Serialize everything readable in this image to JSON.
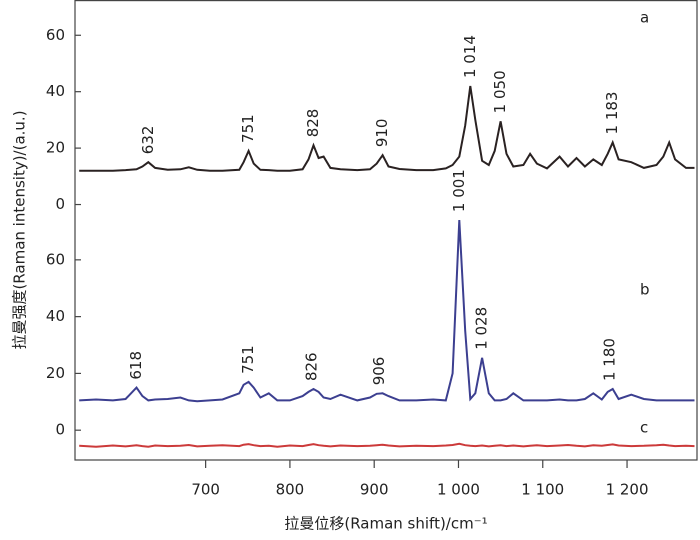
{
  "chart_data": [
    {
      "type": "line",
      "y_label": "拉曼强度(Raman intensity)/(a.u.)",
      "xlim": [
        545,
        1283
      ],
      "ylim": [
        -3,
        72.5
      ],
      "yticks": [
        0,
        20,
        40,
        60
      ],
      "x": [
        550,
        570,
        590,
        605,
        618,
        625,
        632,
        640,
        655,
        670,
        680,
        690,
        705,
        720,
        740,
        745,
        751,
        757,
        765,
        775,
        785,
        800,
        815,
        822,
        828,
        834,
        840,
        848,
        860,
        880,
        895,
        903,
        910,
        917,
        930,
        950,
        970,
        985,
        993,
        1001,
        1008,
        1014,
        1020,
        1028,
        1036,
        1043,
        1050,
        1057,
        1065,
        1077,
        1085,
        1093,
        1105,
        1120,
        1130,
        1140,
        1150,
        1160,
        1170,
        1177,
        1183,
        1190,
        1205,
        1220,
        1235,
        1243,
        1250,
        1257,
        1270,
        1280
      ],
      "series": [
        {
          "name": "a",
          "color": "#2a2222",
          "values": [
            12,
            12,
            12,
            12.2,
            12.5,
            13.5,
            15,
            13,
            12.3,
            12.5,
            13.2,
            12.3,
            12,
            12,
            12.3,
            15,
            19,
            14.5,
            12.3,
            12.2,
            12,
            12,
            12.5,
            16,
            21,
            16.5,
            17,
            13,
            12.5,
            12.2,
            12.5,
            14.5,
            17.5,
            13.5,
            12.6,
            12.2,
            12.2,
            12.8,
            14,
            17,
            28,
            42,
            30,
            15.5,
            14,
            19,
            29.5,
            18,
            13.5,
            14,
            18,
            14.5,
            12.8,
            17,
            13.5,
            16.5,
            13.5,
            16,
            14,
            18,
            22,
            16,
            15,
            13,
            14,
            17,
            22,
            16,
            13,
            13
          ]
        }
      ],
      "annotations": [
        {
          "x": 632,
          "label": "632"
        },
        {
          "x": 751,
          "label": "751"
        },
        {
          "x": 828,
          "label": "828"
        },
        {
          "x": 910,
          "label": "910"
        },
        {
          "x": 1014,
          "label": "1 014"
        },
        {
          "x": 1050,
          "label": "1 050"
        },
        {
          "x": 1183,
          "label": "1 183"
        }
      ]
    },
    {
      "type": "line",
      "x_label": "拉曼位移(Raman shift)/cm⁻¹",
      "xlim": [
        545,
        1283
      ],
      "ylim": [
        -10.5,
        76.5
      ],
      "yticks": [
        0,
        20,
        40,
        60
      ],
      "xticks": [
        700,
        800,
        900,
        {
          "value": 1000,
          "label": "1 000"
        },
        {
          "value": 1100,
          "label": "1 100"
        },
        {
          "value": 1200,
          "label": "1 200"
        }
      ],
      "x": [
        550,
        570,
        590,
        605,
        618,
        625,
        632,
        640,
        655,
        670,
        680,
        690,
        705,
        720,
        740,
        745,
        751,
        757,
        765,
        775,
        785,
        800,
        815,
        822,
        828,
        834,
        840,
        848,
        860,
        880,
        895,
        903,
        910,
        917,
        930,
        950,
        970,
        985,
        993,
        1001,
        1008,
        1014,
        1020,
        1028,
        1036,
        1043,
        1050,
        1057,
        1065,
        1077,
        1085,
        1093,
        1105,
        1120,
        1130,
        1140,
        1150,
        1160,
        1170,
        1177,
        1183,
        1190,
        1205,
        1220,
        1235,
        1243,
        1250,
        1257,
        1270,
        1280
      ],
      "series": [
        {
          "name": "b",
          "color": "#3c3f90",
          "values": [
            10.5,
            10.8,
            10.5,
            11,
            15,
            12,
            10.5,
            10.8,
            11,
            11.5,
            10.5,
            10.2,
            10.5,
            10.8,
            13,
            16,
            17,
            15,
            11.5,
            13,
            10.5,
            10.5,
            12,
            13.5,
            14.5,
            13.5,
            11.5,
            11,
            12.5,
            10.5,
            11.5,
            12.8,
            13,
            12,
            10.5,
            10.5,
            10.8,
            10.5,
            20,
            74,
            35,
            11,
            13,
            25.5,
            13,
            10.5,
            10.5,
            11,
            13,
            10.5,
            10.5,
            10.5,
            10.5,
            10.8,
            10.5,
            10.5,
            11,
            13,
            10.8,
            13.5,
            14.5,
            11,
            12.5,
            11,
            10.5,
            10.5,
            10.5,
            10.5,
            10.5,
            10.5
          ]
        },
        {
          "name": "c",
          "color": "#cc3a3a",
          "values": [
            -5.5,
            -5.8,
            -5.4,
            -5.7,
            -5.3,
            -5.6,
            -5.8,
            -5.4,
            -5.6,
            -5.5,
            -5.2,
            -5.7,
            -5.5,
            -5.3,
            -5.6,
            -5.1,
            -4.9,
            -5.3,
            -5.6,
            -5.5,
            -5.8,
            -5.4,
            -5.6,
            -5.2,
            -4.9,
            -5.3,
            -5.5,
            -5.7,
            -5.4,
            -5.6,
            -5.5,
            -5.3,
            -5.1,
            -5.4,
            -5.7,
            -5.5,
            -5.6,
            -5.4,
            -5.2,
            -4.8,
            -5.3,
            -5.5,
            -5.6,
            -5.4,
            -5.7,
            -5.5,
            -5.3,
            -5.6,
            -5.4,
            -5.7,
            -5.5,
            -5.3,
            -5.6,
            -5.4,
            -5.2,
            -5.5,
            -5.7,
            -5.3,
            -5.5,
            -5.2,
            -5,
            -5.4,
            -5.6,
            -5.5,
            -5.3,
            -5.1,
            -5.4,
            -5.6,
            -5.5,
            -5.6
          ]
        }
      ],
      "annotations": [
        {
          "x": 618,
          "label": "618"
        },
        {
          "x": 751,
          "label": "751"
        },
        {
          "x": 826,
          "label": "826"
        },
        {
          "x": 906,
          "label": "906"
        },
        {
          "x": 1001,
          "label": "1 001"
        },
        {
          "x": 1028,
          "label": "1 028"
        },
        {
          "x": 1180,
          "label": "1 180"
        }
      ]
    }
  ]
}
